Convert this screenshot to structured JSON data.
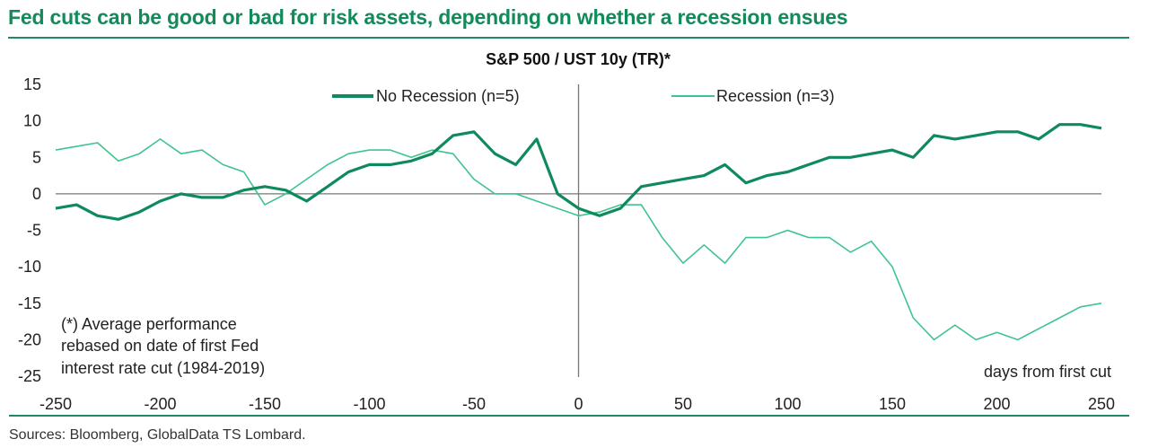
{
  "title": "Fed cuts can be good or bad for risk assets, depending on whether a recession ensues",
  "sources": "Sources: Bloomberg, GlobalData TS Lombard.",
  "colors": {
    "title": "#138a5a",
    "no_recession": "#0f8a5c",
    "recession": "#3ec48e",
    "axis": "#777777"
  },
  "chart_data": {
    "type": "line",
    "title": "S&P 500 / UST 10y (TR)*",
    "xlabel": "days from first cut",
    "ylabel": "",
    "xlim": [
      -250,
      250
    ],
    "ylim": [
      -25,
      15
    ],
    "xticks": [
      -250,
      -200,
      -150,
      -100,
      -50,
      0,
      50,
      100,
      150,
      200,
      250
    ],
    "yticks": [
      15,
      10,
      5,
      0,
      -5,
      -10,
      -15,
      -20,
      -25
    ],
    "grid": false,
    "legend": "top-center",
    "annotation": [
      "(*) Average performance",
      "rebased on date of first Fed",
      "interest rate cut (1984-2019)"
    ],
    "x": [
      -250,
      -240,
      -230,
      -220,
      -210,
      -200,
      -190,
      -180,
      -170,
      -160,
      -150,
      -140,
      -130,
      -120,
      -110,
      -100,
      -90,
      -80,
      -70,
      -60,
      -50,
      -40,
      -30,
      -20,
      -10,
      0,
      10,
      20,
      30,
      40,
      50,
      60,
      70,
      80,
      90,
      100,
      110,
      120,
      130,
      140,
      150,
      160,
      170,
      180,
      190,
      200,
      210,
      220,
      230,
      240,
      250
    ],
    "series": [
      {
        "name": "No Recession (n=5)",
        "values": [
          -2,
          -1.5,
          -3,
          -3.5,
          -2.5,
          -1,
          0,
          -0.5,
          -0.5,
          0.5,
          1,
          0.5,
          -1,
          1,
          3,
          4,
          4,
          4.5,
          5.5,
          8,
          8.5,
          5.5,
          4,
          7.5,
          0,
          -2,
          -3,
          -2,
          1,
          1.5,
          2,
          2.5,
          4,
          1.5,
          2.5,
          3,
          4,
          5,
          5,
          5.5,
          6,
          5,
          8,
          7.5,
          8,
          8.5,
          8.5,
          7.5,
          9.5,
          9.5,
          9
        ]
      },
      {
        "name": "Recession (n=3)",
        "values": [
          6,
          6.5,
          7,
          4.5,
          5.5,
          7.5,
          5.5,
          6,
          4,
          3,
          -1.5,
          0,
          2,
          4,
          5.5,
          6,
          6,
          5,
          6,
          5.5,
          2,
          0,
          0,
          -1,
          -2,
          -3,
          -2.5,
          -1.5,
          -1.5,
          -6,
          -9.5,
          -7,
          -9.5,
          -6,
          -6,
          -5,
          -6,
          -6,
          -8,
          -6.5,
          -10,
          -17,
          -20,
          -18,
          -20,
          -19,
          -20,
          -18.5,
          -17,
          -15.5,
          -15
        ]
      }
    ]
  }
}
